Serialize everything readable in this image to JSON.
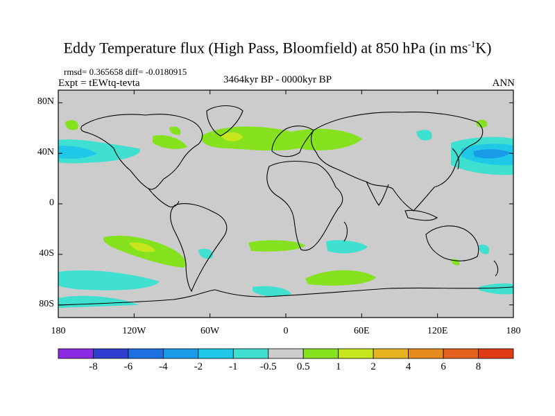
{
  "title": {
    "main": "Eddy Temperature flux (High Pass, Bloomfield) at 850 hPa (in ms",
    "sup": "-1",
    "tail": "K)"
  },
  "stats": "rmsd= 0.365658 diff= -0.0180915",
  "experiment": "Expt = tEWtq-tevta",
  "period": "3464kyr BP - 0000kyr BP",
  "season": "ANN",
  "map": {
    "lat_labels": [
      "80N",
      "40N",
      "0",
      "40S",
      "80S"
    ],
    "lat_values": [
      80,
      40,
      0,
      -40,
      -80
    ],
    "lon_labels": [
      "180",
      "120W",
      "60W",
      "0",
      "60E",
      "120E",
      "180"
    ],
    "lon_values": [
      -180,
      -120,
      -60,
      0,
      60,
      120,
      180
    ]
  },
  "colorbar": {
    "levels": [
      "-8",
      "-6",
      "-4",
      "-2",
      "-1",
      "-0.5",
      "0.5",
      "1",
      "2",
      "4",
      "6",
      "8"
    ],
    "colors": [
      "#8a2be2",
      "#2f3fd0",
      "#1e6fe0",
      "#1a9be8",
      "#20c8e8",
      "#40e0d0",
      "#cccccc",
      "#86e21e",
      "#c8e61e",
      "#e6b41e",
      "#e68a1e",
      "#e6601e",
      "#e03c14"
    ]
  },
  "colors": {
    "ocean_land": "#cccccc",
    "neg_light": "#40e0d0",
    "neg_mid": "#20c8e8",
    "neg_dark": "#1a9be8",
    "pos_light": "#86e21e",
    "pos_mid": "#c8e61e"
  }
}
